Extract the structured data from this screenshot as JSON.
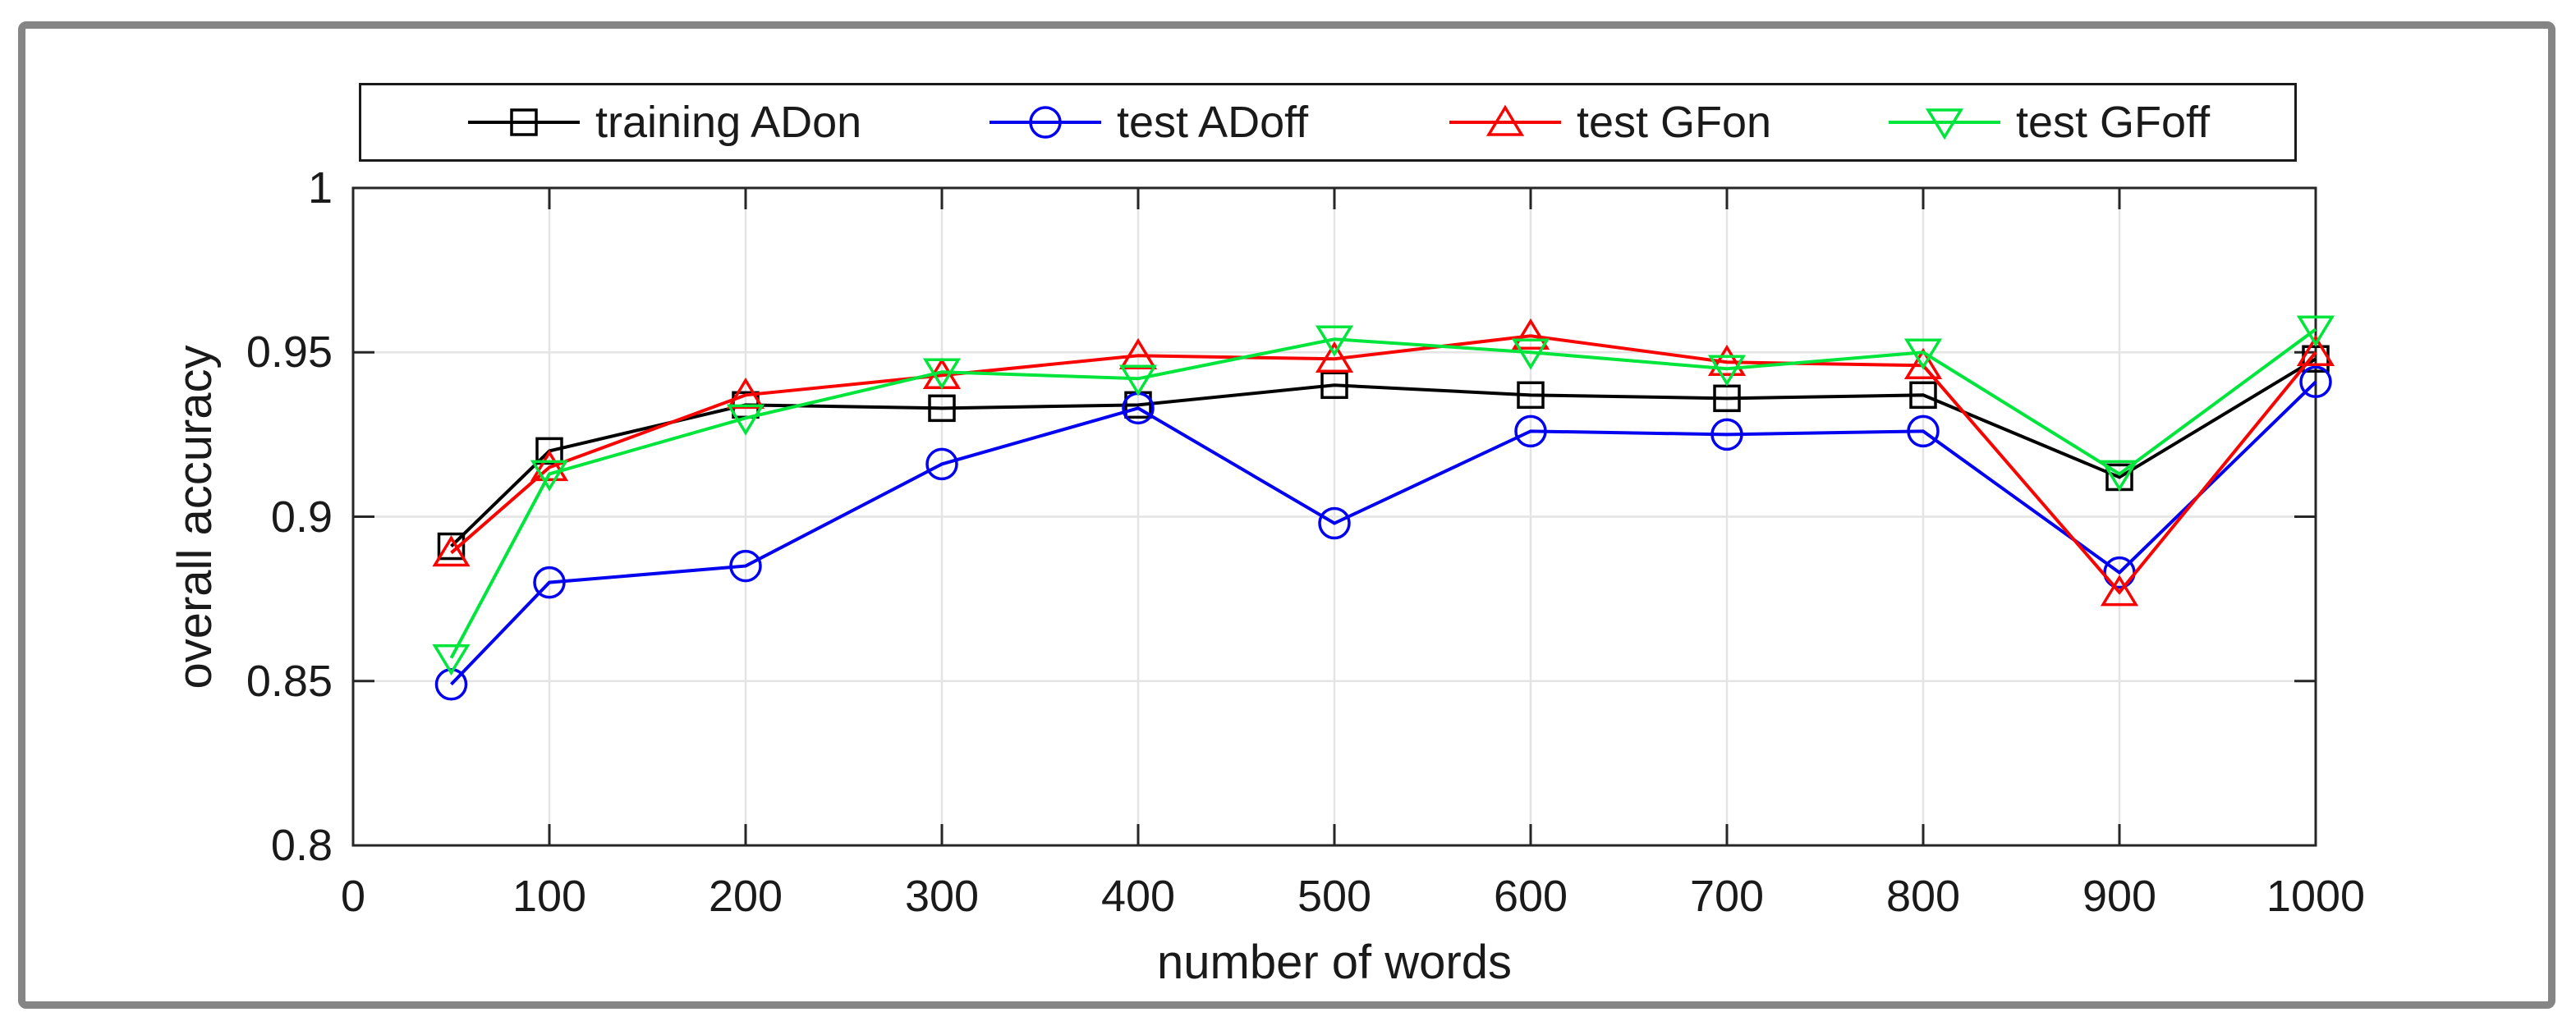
{
  "chart_data": {
    "type": "line",
    "title": "",
    "xlabel": "number of words",
    "ylabel": "overall accuracy",
    "xlim": [
      0,
      1000
    ],
    "ylim": [
      0.8,
      1.0
    ],
    "grid": true,
    "legend_position": "top-outside",
    "xticks": {
      "values": [
        0,
        100,
        200,
        300,
        400,
        500,
        600,
        700,
        800,
        900,
        1000
      ],
      "labels": [
        "0",
        "100",
        "200",
        "300",
        "400",
        "500",
        "600",
        "700",
        "800",
        "900",
        "1000"
      ]
    },
    "yticks": {
      "values": [
        0.8,
        0.85,
        0.9,
        0.95,
        1.0
      ],
      "labels": [
        "0.8",
        "0.85",
        "0.9",
        "0.95",
        "1"
      ]
    },
    "x": [
      50,
      100,
      200,
      300,
      400,
      500,
      600,
      700,
      800,
      900,
      1000
    ],
    "series": [
      {
        "name": "training ADon",
        "color": "#000000",
        "marker": "square",
        "values": [
          0.891,
          0.92,
          0.934,
          0.933,
          0.934,
          0.94,
          0.937,
          0.936,
          0.937,
          0.912,
          0.948
        ]
      },
      {
        "name": "test ADoff",
        "color": "#0202f0",
        "marker": "circle",
        "values": [
          0.849,
          0.88,
          0.885,
          0.916,
          0.933,
          0.898,
          0.926,
          0.925,
          0.926,
          0.883,
          0.941
        ]
      },
      {
        "name": "test GFon",
        "color": "#f80400",
        "marker": "triangle-up",
        "values": [
          0.889,
          0.915,
          0.937,
          0.943,
          0.949,
          0.948,
          0.955,
          0.947,
          0.946,
          0.877,
          0.95
        ]
      },
      {
        "name": "test GFoff",
        "color": "#00e53c",
        "marker": "triangle-down",
        "values": [
          0.857,
          0.913,
          0.93,
          0.944,
          0.942,
          0.954,
          0.95,
          0.945,
          0.95,
          0.913,
          0.957
        ]
      }
    ]
  },
  "colors": {
    "frame": "#262626",
    "grid": "#e4e4e4",
    "tick": "#262626",
    "text": "#1a1a1a",
    "figure_border": "#858585",
    "background": "#ffffff"
  }
}
